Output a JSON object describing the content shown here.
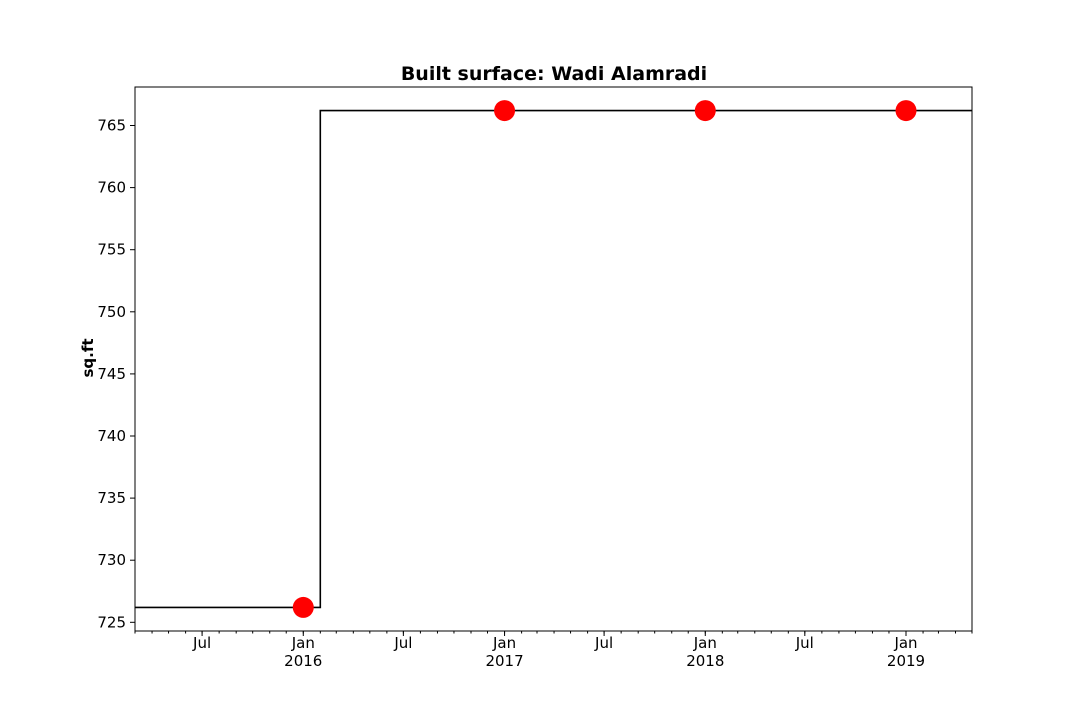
{
  "chart_data": {
    "type": "line",
    "title": "Built surface: Wadi Alamradi",
    "xlabel": "",
    "ylabel": "sq.ft",
    "xlim": [
      "2015-03-01",
      "2019-05-01"
    ],
    "ylim": [
      724.3,
      768.1
    ],
    "grid": false,
    "legend": "none",
    "x_ticks": [
      {
        "date": "2015-07-01",
        "label": "Jul",
        "year": ""
      },
      {
        "date": "2016-01-01",
        "label": "Jan",
        "year": "2016"
      },
      {
        "date": "2016-07-01",
        "label": "Jul",
        "year": ""
      },
      {
        "date": "2017-01-01",
        "label": "Jan",
        "year": "2017"
      },
      {
        "date": "2017-07-01",
        "label": "Jul",
        "year": ""
      },
      {
        "date": "2018-01-01",
        "label": "Jan",
        "year": "2018"
      },
      {
        "date": "2018-07-01",
        "label": "Jul",
        "year": ""
      },
      {
        "date": "2019-01-01",
        "label": "Jan",
        "year": "2019"
      }
    ],
    "y_ticks": [
      725,
      730,
      735,
      740,
      745,
      750,
      755,
      760,
      765
    ],
    "series": [
      {
        "style": "step",
        "color": "#000000",
        "points": [
          {
            "x": "2015-03-01",
            "y": 726.2
          },
          {
            "x": "2016-02-01",
            "y": 726.2
          },
          {
            "x": "2016-02-01",
            "y": 766.2
          },
          {
            "x": "2019-05-01",
            "y": 766.2
          }
        ]
      },
      {
        "style": "markers",
        "color": "#ff0000",
        "points": [
          {
            "x": "2016-01-01",
            "y": 726.2
          },
          {
            "x": "2017-01-01",
            "y": 766.2
          },
          {
            "x": "2018-01-01",
            "y": 766.2
          },
          {
            "x": "2019-01-01",
            "y": 766.2
          }
        ]
      }
    ]
  }
}
